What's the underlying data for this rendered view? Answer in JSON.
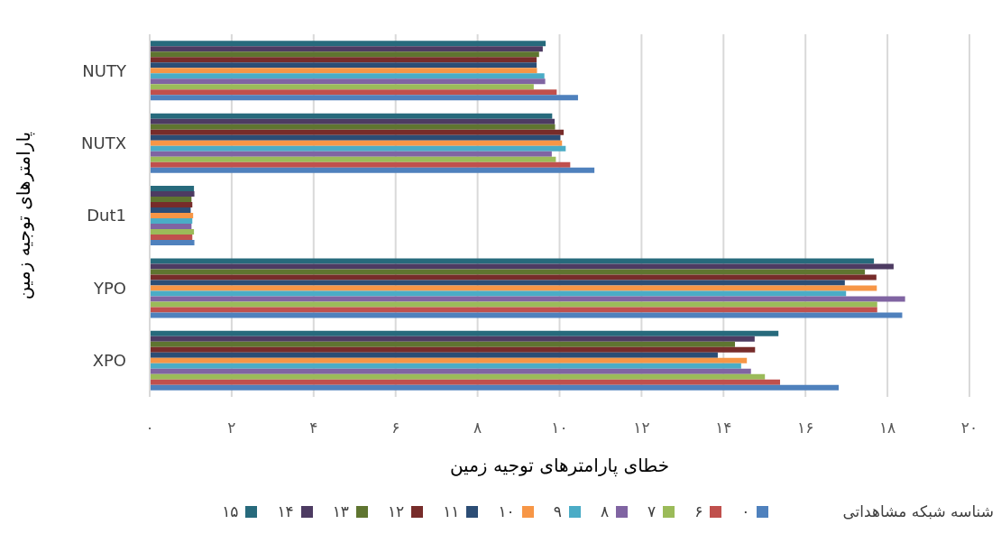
{
  "chart_data": {
    "type": "bar",
    "orientation": "horizontal",
    "xlabel": "خطای پارامترهای توجیه زمین",
    "ylabel": "پارامترهای توجیه زمین",
    "legend_title": "شناسه شبکه مشاهداتی",
    "legend": "bottom",
    "grid": "x",
    "categories": [
      "NUTY",
      "NUTX",
      "Dut1",
      "YPO",
      "XPO"
    ],
    "xlim": [
      0,
      20
    ],
    "xticks": [
      {
        "value": 0,
        "label": "۰"
      },
      {
        "value": 2,
        "label": "۲"
      },
      {
        "value": 4,
        "label": "۴"
      },
      {
        "value": 6,
        "label": "۶"
      },
      {
        "value": 8,
        "label": "۸"
      },
      {
        "value": 10,
        "label": "۱۰"
      },
      {
        "value": 12,
        "label": "۱۲"
      },
      {
        "value": 14,
        "label": "۱۴"
      },
      {
        "value": 16,
        "label": "۱۶"
      },
      {
        "value": 18,
        "label": "۱۸"
      },
      {
        "value": 20,
        "label": "۲۰"
      }
    ],
    "series": [
      {
        "name": "۰",
        "color": "#4f81bd",
        "values": [
          10.45,
          10.85,
          1.09,
          18.36,
          16.81
        ]
      },
      {
        "name": "۶",
        "color": "#c0504d",
        "values": [
          9.93,
          10.26,
          1.04,
          17.75,
          15.38
        ]
      },
      {
        "name": "۷",
        "color": "#9bbb59",
        "values": [
          9.37,
          9.91,
          1.08,
          17.75,
          15.01
        ]
      },
      {
        "name": "۸",
        "color": "#8064a2",
        "values": [
          9.65,
          9.81,
          1.02,
          18.43,
          14.67
        ]
      },
      {
        "name": "۹",
        "color": "#4bacc6",
        "values": [
          9.63,
          10.15,
          1.04,
          16.99,
          14.43
        ]
      },
      {
        "name": "۱۰",
        "color": "#f79646",
        "values": [
          9.45,
          10.06,
          1.06,
          17.74,
          14.57
        ]
      },
      {
        "name": "۱۱",
        "color": "#2c4d75",
        "values": [
          9.44,
          10.02,
          1.0,
          16.96,
          13.86
        ]
      },
      {
        "name": "۱۲",
        "color": "#772c2a",
        "values": [
          9.44,
          10.1,
          1.04,
          17.73,
          14.77
        ]
      },
      {
        "name": "۱۳",
        "color": "#5f7530",
        "values": [
          9.5,
          9.89,
          1.02,
          17.45,
          14.28
        ]
      },
      {
        "name": "۱۴",
        "color": "#4d3b62",
        "values": [
          9.59,
          9.88,
          1.09,
          18.15,
          14.76
        ]
      },
      {
        "name": "۱۵",
        "color": "#276a7c",
        "values": [
          9.66,
          9.82,
          1.08,
          17.67,
          15.34
        ]
      }
    ]
  }
}
